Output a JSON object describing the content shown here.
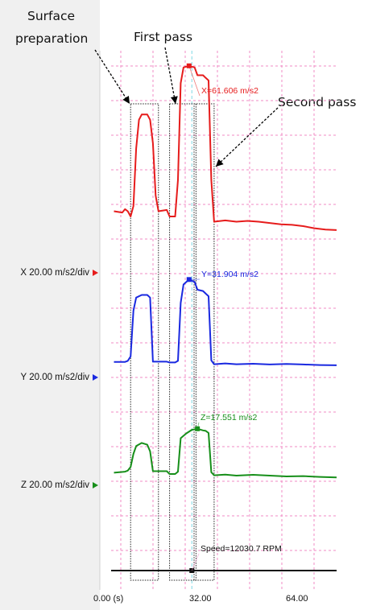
{
  "callouts": {
    "surface_line1": "Surface",
    "surface_line2": "preparation",
    "first_pass": "First pass",
    "second_pass": "Second pass"
  },
  "chart_data": {
    "type": "line",
    "x_ticks": [
      "0.00 (s)",
      "32.00",
      "64.00"
    ],
    "x_tick_values": [
      0,
      32,
      64
    ],
    "xlim": [
      -1,
      80
    ],
    "series": [
      {
        "channel": "X",
        "label": "X 20.00 m/s2/div",
        "color": "#e61c1c",
        "annotation": "X=61.606 m/s2",
        "units_per_div": 20,
        "points": [
          [
            0,
            6
          ],
          [
            3,
            5.5
          ],
          [
            4,
            6.8
          ],
          [
            5,
            6
          ],
          [
            6,
            4
          ],
          [
            7,
            8
          ],
          [
            8,
            30
          ],
          [
            9,
            41
          ],
          [
            10,
            43
          ],
          [
            12,
            43
          ],
          [
            13,
            41
          ],
          [
            14,
            32
          ],
          [
            15,
            12
          ],
          [
            16,
            6
          ],
          [
            19,
            6.5
          ],
          [
            20,
            4
          ],
          [
            22,
            4
          ],
          [
            23,
            18
          ],
          [
            24,
            55
          ],
          [
            25,
            61
          ],
          [
            27,
            61.6
          ],
          [
            29,
            61
          ],
          [
            30,
            58
          ],
          [
            32,
            58
          ],
          [
            33,
            57
          ],
          [
            34,
            56
          ],
          [
            35,
            18
          ],
          [
            36,
            2
          ],
          [
            40,
            2.5
          ],
          [
            44,
            2
          ],
          [
            48,
            2.3
          ],
          [
            52,
            2
          ],
          [
            56,
            1.5
          ],
          [
            60,
            1
          ],
          [
            64,
            0.8
          ],
          [
            68,
            0.3
          ],
          [
            72,
            -0.5
          ],
          [
            76,
            -1
          ],
          [
            80,
            -1.2
          ]
        ]
      },
      {
        "channel": "Y",
        "label": "Y 20.00 m/s2/div",
        "color": "#1a29e0",
        "annotation": "Y=31.904 m/s2",
        "units_per_div": 20,
        "points": [
          [
            0,
            0.4
          ],
          [
            4,
            0.4
          ],
          [
            5,
            0.8
          ],
          [
            6,
            2.5
          ],
          [
            7,
            20
          ],
          [
            8,
            25
          ],
          [
            10,
            26
          ],
          [
            12,
            26
          ],
          [
            13,
            25
          ],
          [
            14,
            0.5
          ],
          [
            19,
            0.5
          ],
          [
            20,
            0.2
          ],
          [
            22,
            0.2
          ],
          [
            23,
            0.8
          ],
          [
            24,
            23
          ],
          [
            25,
            30
          ],
          [
            27,
            31.9
          ],
          [
            29,
            31
          ],
          [
            30,
            28
          ],
          [
            32,
            27.5
          ],
          [
            33,
            26.5
          ],
          [
            34,
            25.5
          ],
          [
            35,
            1
          ],
          [
            36,
            -0.5
          ],
          [
            40,
            -0.2
          ],
          [
            44,
            -0.5
          ],
          [
            50,
            -0.3
          ],
          [
            56,
            -0.6
          ],
          [
            62,
            -0.4
          ],
          [
            68,
            -0.6
          ],
          [
            74,
            -0.8
          ],
          [
            80,
            -0.9
          ]
        ]
      },
      {
        "channel": "Z",
        "label": "Z 20.00 m/s2/div",
        "color": "#178f1a",
        "annotation": "Z=17.551 m/s2",
        "units_per_div": 20,
        "points": [
          [
            0,
            0.8
          ],
          [
            4,
            1.2
          ],
          [
            5,
            1.6
          ],
          [
            6,
            3
          ],
          [
            7,
            8
          ],
          [
            8,
            11
          ],
          [
            10,
            12.2
          ],
          [
            12,
            11.5
          ],
          [
            13,
            9
          ],
          [
            14,
            1.4
          ],
          [
            19,
            1.4
          ],
          [
            20,
            0.3
          ],
          [
            22,
            0.3
          ],
          [
            23,
            1.2
          ],
          [
            24,
            14
          ],
          [
            26,
            15.8
          ],
          [
            28,
            17.2
          ],
          [
            30,
            17.6
          ],
          [
            32,
            17
          ],
          [
            33,
            16.8
          ],
          [
            34,
            16
          ],
          [
            35,
            1
          ],
          [
            36,
            -0.2
          ],
          [
            40,
            0.1
          ],
          [
            44,
            -0.3
          ],
          [
            50,
            0
          ],
          [
            56,
            -0.3
          ],
          [
            62,
            -0.6
          ],
          [
            68,
            -0.5
          ],
          [
            74,
            -0.8
          ],
          [
            80,
            -1
          ]
        ]
      },
      {
        "channel": "Speed",
        "label": "",
        "color": "#111111",
        "annotation": "Speed=12030.7 RPM",
        "points": [
          [
            -1,
            0
          ],
          [
            80,
            0
          ]
        ]
      }
    ],
    "cursor_x": 28,
    "selection_boxes": [
      {
        "name": "surface-preparation",
        "x_range": [
          6,
          16
        ]
      },
      {
        "name": "first-pass",
        "x_range": [
          20,
          29.5
        ]
      },
      {
        "name": "second-pass",
        "x_range": [
          28.8,
          36
        ]
      }
    ],
    "grid": true
  }
}
